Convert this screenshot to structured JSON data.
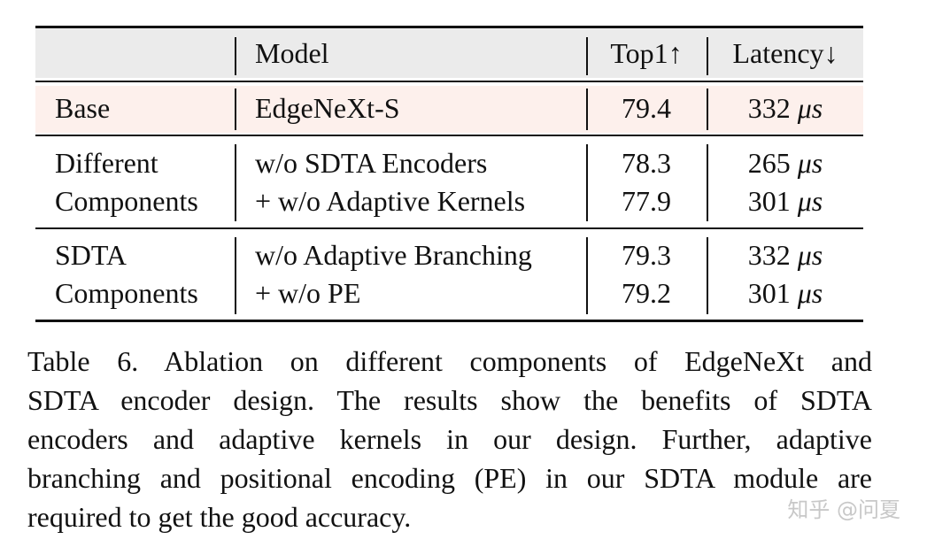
{
  "table": {
    "header": {
      "model": "Model",
      "top1": "Top1↑",
      "latency": "Latency↓"
    },
    "sections": [
      {
        "label": [
          "Base"
        ],
        "rows": [
          {
            "model": "EdgeNeXt-S",
            "top1": 79.4,
            "latency": {
              "value": 332,
              "unit": "μs"
            }
          }
        ]
      },
      {
        "label": [
          "Different",
          "Components"
        ],
        "rows": [
          {
            "model": "w/o SDTA Encoders",
            "top1": 78.3,
            "latency": {
              "value": 265,
              "unit": "μs"
            }
          },
          {
            "model": "+ w/o Adaptive Kernels",
            "top1": 77.9,
            "latency": {
              "value": 301,
              "unit": "μs"
            }
          }
        ]
      },
      {
        "label": [
          "SDTA",
          "Components"
        ],
        "rows": [
          {
            "model": "w/o Adaptive Branching",
            "top1": 79.3,
            "latency": {
              "value": 332,
              "unit": "μs"
            }
          },
          {
            "model": "+ w/o PE",
            "top1": 79.2,
            "latency": {
              "value": 301,
              "unit": "μs"
            }
          }
        ]
      }
    ]
  },
  "caption": {
    "lines": [
      "Table 6.  Ablation on different components of EdgeNeXt and",
      "SDTA encoder design.  The results show the benefits of SDTA",
      "encoders and adaptive kernels in our design.  Further, adaptive",
      "branching and positional encoding (PE) in our SDTA module are",
      "required to get the good accuracy."
    ]
  },
  "watermark": "知乎 @问夏"
}
